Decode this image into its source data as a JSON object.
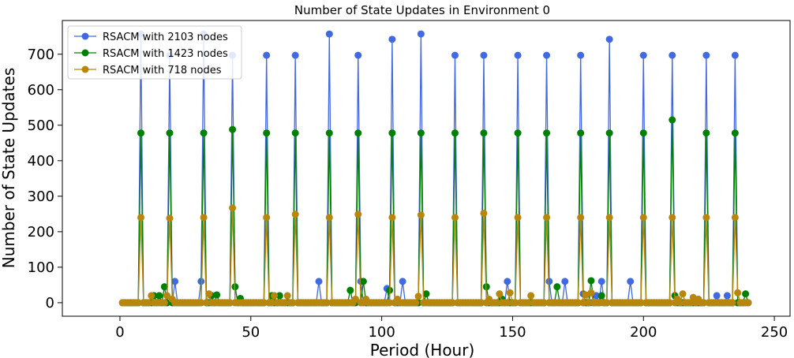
{
  "chart_data": {
    "type": "line",
    "title": "Number of State Updates in Environment 0",
    "xlabel": "Period (Hour)",
    "ylabel": "Number of State Updates",
    "xlim": [
      -22,
      256
    ],
    "ylim": [
      -38,
      795
    ],
    "xticks": [
      0,
      50,
      100,
      150,
      200,
      250
    ],
    "yticks": [
      0,
      100,
      200,
      300,
      400,
      500,
      600,
      700
    ],
    "x_range": [
      1,
      240
    ],
    "grid": false,
    "legend_position": "top-left",
    "series": [
      {
        "name": "RSACM with 2103 nodes",
        "color": "#4169e1",
        "points": [
          [
            8,
            757
          ],
          [
            19,
            697
          ],
          [
            21,
            60
          ],
          [
            31,
            60
          ],
          [
            32,
            757
          ],
          [
            43,
            697
          ],
          [
            56,
            697
          ],
          [
            67,
            697
          ],
          [
            76,
            60
          ],
          [
            80,
            757
          ],
          [
            91,
            697
          ],
          [
            92,
            60
          ],
          [
            102,
            40
          ],
          [
            104,
            742
          ],
          [
            108,
            60
          ],
          [
            115,
            757
          ],
          [
            128,
            697
          ],
          [
            139,
            697
          ],
          [
            148,
            60
          ],
          [
            152,
            697
          ],
          [
            163,
            697
          ],
          [
            164,
            60
          ],
          [
            170,
            60
          ],
          [
            176,
            697
          ],
          [
            177,
            25
          ],
          [
            182,
            20
          ],
          [
            184,
            60
          ],
          [
            187,
            742
          ],
          [
            195,
            60
          ],
          [
            200,
            697
          ],
          [
            211,
            697
          ],
          [
            224,
            697
          ],
          [
            228,
            20
          ],
          [
            232,
            20
          ],
          [
            235,
            697
          ]
        ]
      },
      {
        "name": "RSACM with 1423 nodes",
        "color": "#008000",
        "points": [
          [
            8,
            478
          ],
          [
            13,
            20
          ],
          [
            15,
            20
          ],
          [
            17,
            45
          ],
          [
            19,
            478
          ],
          [
            32,
            478
          ],
          [
            35,
            20
          ],
          [
            37,
            22
          ],
          [
            43,
            488
          ],
          [
            44,
            45
          ],
          [
            46,
            12
          ],
          [
            56,
            478
          ],
          [
            58,
            20
          ],
          [
            61,
            20
          ],
          [
            67,
            478
          ],
          [
            80,
            478
          ],
          [
            88,
            35
          ],
          [
            91,
            478
          ],
          [
            93,
            60
          ],
          [
            103,
            35
          ],
          [
            104,
            478
          ],
          [
            115,
            478
          ],
          [
            117,
            25
          ],
          [
            128,
            478
          ],
          [
            139,
            478
          ],
          [
            140,
            45
          ],
          [
            146,
            10
          ],
          [
            152,
            478
          ],
          [
            163,
            478
          ],
          [
            167,
            45
          ],
          [
            176,
            478
          ],
          [
            180,
            62
          ],
          [
            184,
            20
          ],
          [
            187,
            478
          ],
          [
            200,
            478
          ],
          [
            211,
            515
          ],
          [
            212,
            20
          ],
          [
            224,
            478
          ],
          [
            235,
            478
          ],
          [
            239,
            25
          ]
        ]
      },
      {
        "name": "RSACM with 718 nodes",
        "color": "#b8860b",
        "points": [
          [
            8,
            240
          ],
          [
            12,
            20
          ],
          [
            18,
            20
          ],
          [
            19,
            238
          ],
          [
            20,
            10
          ],
          [
            32,
            240
          ],
          [
            34,
            25
          ],
          [
            43,
            267
          ],
          [
            56,
            240
          ],
          [
            59,
            20
          ],
          [
            64,
            20
          ],
          [
            67,
            249
          ],
          [
            80,
            240
          ],
          [
            90,
            10
          ],
          [
            91,
            249
          ],
          [
            94,
            10
          ],
          [
            104,
            240
          ],
          [
            106,
            10
          ],
          [
            114,
            18
          ],
          [
            115,
            247
          ],
          [
            128,
            240
          ],
          [
            139,
            252
          ],
          [
            141,
            10
          ],
          [
            145,
            25
          ],
          [
            149,
            28
          ],
          [
            152,
            240
          ],
          [
            157,
            20
          ],
          [
            163,
            240
          ],
          [
            176,
            240
          ],
          [
            178,
            22
          ],
          [
            180,
            28
          ],
          [
            187,
            240
          ],
          [
            200,
            240
          ],
          [
            211,
            240
          ],
          [
            213,
            10
          ],
          [
            215,
            25
          ],
          [
            219,
            15
          ],
          [
            221,
            10
          ],
          [
            224,
            240
          ],
          [
            235,
            240
          ],
          [
            236,
            28
          ]
        ]
      }
    ]
  }
}
